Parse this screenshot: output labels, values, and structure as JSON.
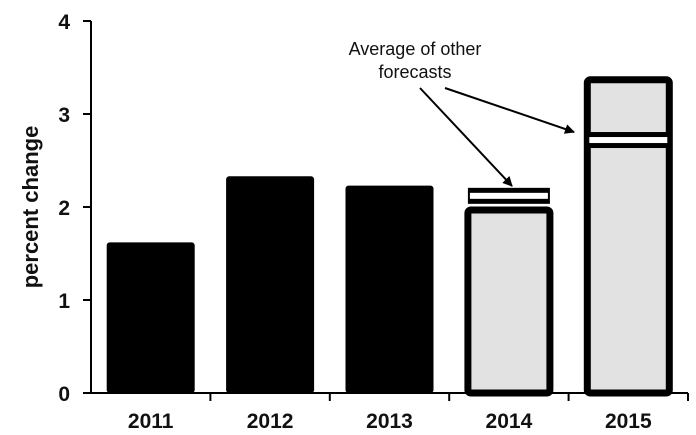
{
  "chart_data": {
    "type": "bar",
    "title": "",
    "xlabel": "",
    "ylabel": "percent change",
    "ylim": [
      0,
      4
    ],
    "yticks": [
      0,
      1,
      2,
      3,
      4
    ],
    "categories": [
      "2011",
      "2012",
      "2013",
      "2014",
      "2015"
    ],
    "values": [
      1.62,
      2.33,
      2.23,
      2.0,
      3.4
    ],
    "kind": [
      "actual",
      "actual",
      "actual",
      "forecast",
      "forecast"
    ],
    "average_of_other_forecasts": [
      null,
      null,
      null,
      2.12,
      2.72
    ],
    "annotation": [
      "Average of other",
      "forecasts"
    ],
    "colors": {
      "actual": "#000000",
      "forecast_fill": "#e2e2e2",
      "outline": "#000000",
      "average_marker": "#ffffff"
    },
    "grid": false
  }
}
